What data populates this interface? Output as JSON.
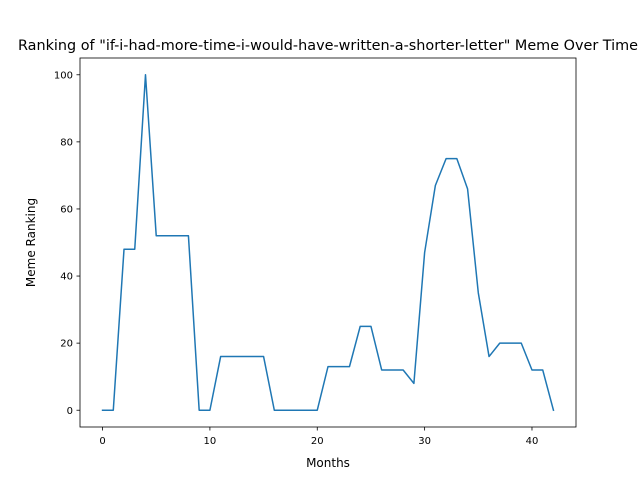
{
  "chart_data": {
    "type": "line",
    "title": "Ranking of \"if-i-had-more-time-i-would-have-written-a-shorter-letter\" Meme Over Time",
    "xlabel": "Months",
    "ylabel": "Meme Ranking",
    "xlim": [
      -2.1,
      44.1
    ],
    "ylim": [
      -5,
      105
    ],
    "xticks": [
      0,
      10,
      20,
      30,
      40
    ],
    "yticks": [
      0,
      20,
      40,
      60,
      80,
      100
    ],
    "grid": false,
    "series": [
      {
        "color": "#1f77b4",
        "x": [
          0,
          1,
          2,
          3,
          4,
          5,
          6,
          7,
          8,
          9,
          10,
          11,
          12,
          13,
          14,
          15,
          16,
          17,
          18,
          19,
          20,
          21,
          22,
          23,
          24,
          25,
          26,
          27,
          28,
          29,
          30,
          31,
          32,
          33,
          34,
          35,
          36,
          37,
          38,
          39,
          40,
          41,
          42
        ],
        "y": [
          0,
          0,
          48,
          48,
          100,
          52,
          52,
          52,
          52,
          0,
          0,
          16,
          16,
          16,
          16,
          16,
          0,
          0,
          0,
          0,
          0,
          13,
          13,
          13,
          25,
          25,
          12,
          12,
          12,
          8,
          47,
          67,
          75,
          75,
          66,
          35,
          16,
          20,
          20,
          20,
          12,
          12,
          0
        ]
      }
    ]
  }
}
